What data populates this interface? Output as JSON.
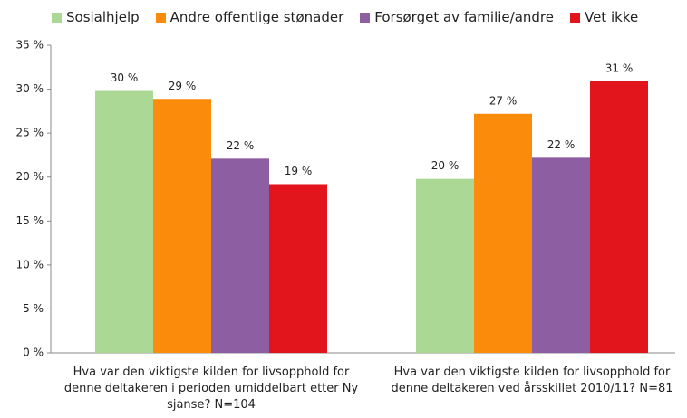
{
  "chart_data": {
    "type": "bar",
    "categories": [
      "Hva var den viktigste kilden for livsopphold for denne deltakeren i perioden umiddelbart etter Ny sjanse? N=104",
      "Hva var den viktigste kilden for livsopphold for denne deltakeren ved årsskillet 2010/11? N=81"
    ],
    "series": [
      {
        "name": "Sosialhjelp",
        "color": "#acd895",
        "values": [
          29.8,
          19.8
        ],
        "value_labels": [
          "30 %",
          "20 %"
        ]
      },
      {
        "name": "Andre offentlige stønader",
        "color": "#fb8b0b",
        "values": [
          28.9,
          27.2
        ],
        "value_labels": [
          "29 %",
          "27 %"
        ]
      },
      {
        "name": "Forsørget av familie/andre",
        "color": "#8e5ea2",
        "values": [
          22.1,
          22.2
        ],
        "value_labels": [
          "22 %",
          "22 %"
        ]
      },
      {
        "name": "Vet ikke",
        "color": "#e3151c",
        "values": [
          19.2,
          30.9
        ],
        "value_labels": [
          "19 %",
          "31 %"
        ]
      }
    ],
    "ylim": [
      0,
      35
    ],
    "yticks": [
      {
        "value": 0,
        "label": "0 %"
      },
      {
        "value": 5,
        "label": "5 %"
      },
      {
        "value": 10,
        "label": "10 %"
      },
      {
        "value": 15,
        "label": "15 %"
      },
      {
        "value": 20,
        "label": "20 %"
      },
      {
        "value": 25,
        "label": "25 %"
      },
      {
        "value": 30,
        "label": "30 %"
      },
      {
        "value": 35,
        "label": "35 %"
      }
    ],
    "legend": "top"
  }
}
